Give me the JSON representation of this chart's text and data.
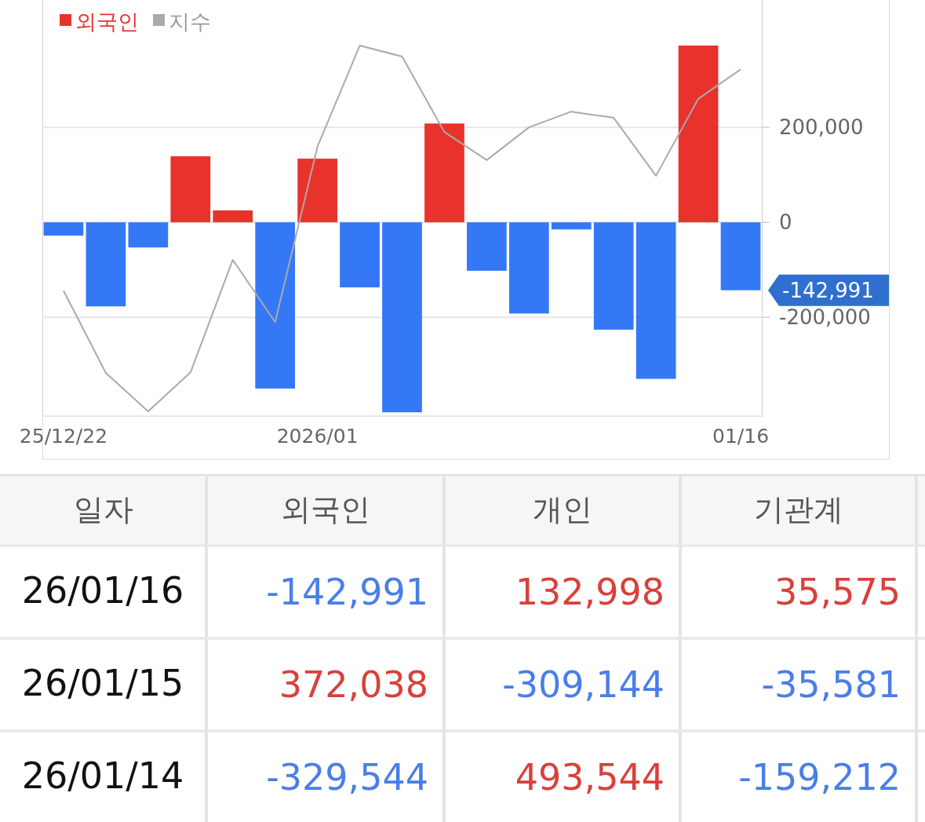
{
  "chart_data": [
    {
      "type": "bar",
      "categories": [
        "25/12/22",
        null,
        null,
        null,
        null,
        null,
        "2026/01",
        null,
        null,
        null,
        null,
        null,
        null,
        null,
        null,
        null,
        "01/16"
      ],
      "series": [
        {
          "name": "외국인",
          "color": "#e8322b",
          "colors": [
            "#3478f6",
            "#3478f6",
            "#3478f6",
            "#e8322b",
            "#e8322b",
            "#3478f6",
            "#e8322b",
            "#3478f6",
            "#3478f6",
            "#e8322b",
            "#3478f6",
            "#3478f6",
            "#3478f6",
            "#3478f6",
            "#3478f6",
            "#e8322b",
            "#3478f6"
          ],
          "values": [
            -28000,
            -177000,
            -53000,
            139000,
            25000,
            -350000,
            134000,
            -137000,
            -400000,
            208000,
            -102000,
            -192000,
            -15000,
            -226000,
            -329544,
            372038,
            -142991
          ]
        },
        {
          "name": "지수",
          "type": "line",
          "color": "#aaaaaa",
          "values": [
            -144000,
            -317000,
            -398000,
            -316000,
            -79000,
            -210000,
            159000,
            372000,
            349000,
            190000,
            131000,
            200000,
            233000,
            220000,
            98000,
            260000,
            322000
          ]
        }
      ],
      "ylim": [
        -408000,
        468000
      ],
      "yticks": [
        {
          "value": -200000,
          "label": "-200,000"
        },
        {
          "value": 0,
          "label": "0"
        },
        {
          "value": 200000,
          "label": "200,000"
        }
      ],
      "grid": "y",
      "legend": "top left",
      "annotations": [
        {
          "text": "-142,991",
          "x": "01/16",
          "y": -142991
        }
      ]
    },
    {
      "type": "heatmap",
      "ylabel": "일자",
      "categories": [
        "외국인",
        "개인",
        "기관계"
      ],
      "y_categories": [
        "26/01/16",
        "26/01/15",
        "26/01/14"
      ],
      "cells": [
        [
          -142991,
          132998,
          35575
        ],
        [
          372038,
          -309144,
          -35581
        ],
        [
          -329544,
          493544,
          -159212
        ]
      ],
      "cell_labels": [
        [
          "-142,991",
          "132,998",
          "35,575"
        ],
        [
          "372,038",
          "-309,144",
          "-35,581"
        ],
        [
          "-329,544",
          "493,544",
          "-159,212"
        ]
      ]
    }
  ]
}
